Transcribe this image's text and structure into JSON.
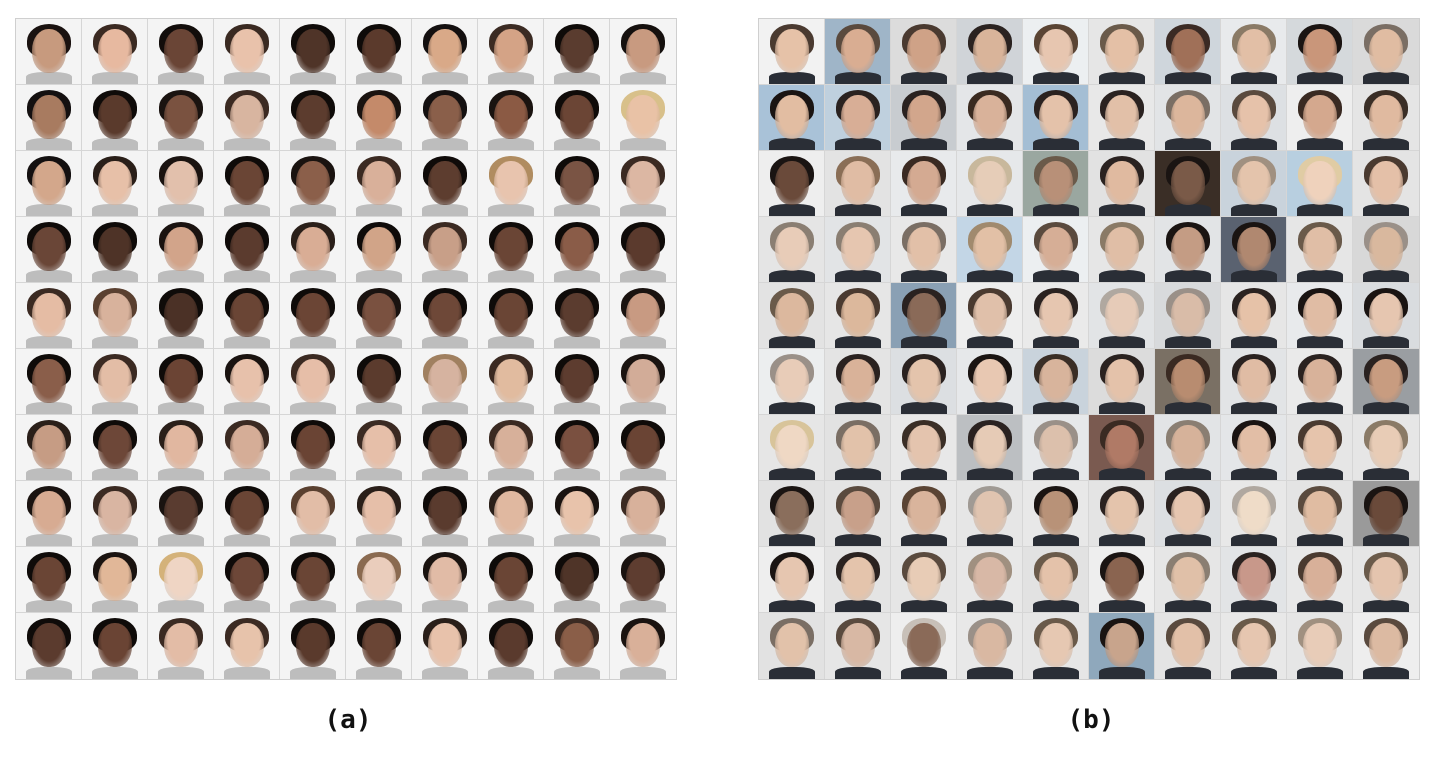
{
  "panels": [
    {
      "label": "(a)",
      "rows": 10,
      "cols": 10,
      "background": "#f4f4f4",
      "clothing": "#bdbdbd",
      "skin": [
        "#c79a7e",
        "#e7b9a0",
        "#6a4536",
        "#e9c2ab",
        "#4f3428",
        "#5b3a2c",
        "#d9a988",
        "#d4a386",
        "#5a3c2f",
        "#c89a80",
        "#a87b60",
        "#5a3a2c",
        "#7a5240",
        "#d8b5a0",
        "#5c3c2e",
        "#c48a6a",
        "#8a5f4a",
        "#8b5a44",
        "#6b4535",
        "#e9c2a6",
        "#d3a78b",
        "#e7c0a8",
        "#e2c0ac",
        "#6a4535",
        "#8b5f4a",
        "#d9b09a",
        "#5d3d2f",
        "#e8c4ae",
        "#7a5444",
        "#dcb7a3",
        "#6a4637",
        "#4e3327",
        "#d2a48a",
        "#5b3b2e",
        "#d9ad95",
        "#d1a488",
        "#c89f88",
        "#6a4535",
        "#8a5c48",
        "#5b3a2d",
        "#e5bca4",
        "#d8b29c",
        "#4b3126",
        "#6a4535",
        "#6b4535",
        "#7a5140",
        "#6e4838",
        "#6a4535",
        "#5b3c2f",
        "#c89a82",
        "#8a5e4a",
        "#e3bda6",
        "#6b4434",
        "#e7c1ab",
        "#e6bea8",
        "#5b3b2d",
        "#d6b3a0",
        "#e1bb9f",
        "#5d3c2f",
        "#d2ac98",
        "#c69c84",
        "#6d4738",
        "#e1b7a0",
        "#d5ad97",
        "#6a4434",
        "#e6bfa9",
        "#6a4535",
        "#d7b09a",
        "#7a5040",
        "#6a4434",
        "#d7ab92",
        "#d9b5a2",
        "#5a3c30",
        "#6a4535",
        "#e2bda7",
        "#e6bfa9",
        "#5a3b2e",
        "#e0b8a0",
        "#e8c3ab",
        "#d8b19b",
        "#6a4535",
        "#e1b798",
        "#efd5c4",
        "#6d4738",
        "#6a4535",
        "#eacdbc",
        "#e1bba6",
        "#6a4535",
        "#4f3428",
        "#5e3d30",
        "#5b3b2e",
        "#6a4434",
        "#e3bca6",
        "#e7c3ab",
        "#5a3a2c",
        "#6a4535",
        "#e8c2ab",
        "#5a3a2d",
        "#8a5e48",
        "#d9b099"
      ],
      "hair": [
        "#1a1210",
        "#3b2a22",
        "#120d0b",
        "#3a2a22",
        "#0f0b09",
        "#0f0b09",
        "#141010",
        "#3b2b23",
        "#0f0b09",
        "#15100e",
        "#141010",
        "#0f0b09",
        "#1a1310",
        "#3b2a22",
        "#0f0b09",
        "#1a1310",
        "#141010",
        "#1a1310",
        "#0f0b09",
        "#d8c08a",
        "#141010",
        "#2a1f19",
        "#1a1310",
        "#0f0b09",
        "#1a1310",
        "#3b2a22",
        "#0f0b09",
        "#b08c60",
        "#0f0b09",
        "#3b2a22",
        "#0f0b09",
        "#0f0b09",
        "#1a1310",
        "#0f0b09",
        "#2a1f19",
        "#0f0b09",
        "#3b2a22",
        "#0f0b09",
        "#0f0b09",
        "#0f0b09",
        "#3b2a22",
        "#5a4030",
        "#0f0b09",
        "#0f0b09",
        "#0f0b09",
        "#1a1310",
        "#0f0b09",
        "#0f0b09",
        "#0f0b09",
        "#1a1310",
        "#0f0b09",
        "#3b2a22",
        "#0f0b09",
        "#1a1310",
        "#3b2a22",
        "#0f0b09",
        "#a08060",
        "#3b2a22",
        "#0f0b09",
        "#1a1310",
        "#2a1f19",
        "#0f0b09",
        "#2a1f19",
        "#3b2a22",
        "#0f0b09",
        "#3b2a22",
        "#0f0b09",
        "#3b2a22",
        "#0f0b09",
        "#0f0b09",
        "#1a1310",
        "#3b2a22",
        "#1a1310",
        "#0f0b09",
        "#5a4030",
        "#2a1f19",
        "#0f0b09",
        "#2a1f19",
        "#1a1310",
        "#3b2a22",
        "#0f0b09",
        "#1a1310",
        "#d4b27a",
        "#0f0b09",
        "#0f0b09",
        "#8a6a50",
        "#1a1310",
        "#0f0b09",
        "#0f0b09",
        "#1a1310",
        "#0f0b09",
        "#0f0b09",
        "#3b2a22",
        "#3b2a22",
        "#0f0b09",
        "#0f0b09",
        "#2a1f19",
        "#0f0b09",
        "#3b2a22",
        "#1a1310"
      ]
    },
    {
      "label": "(b)",
      "rows": 10,
      "cols": 10,
      "background": "#e9eef2",
      "clothing": "#2a2e36",
      "bg_tints": [
        "#f2f2f2",
        "#9fb5c8",
        "#dcdcdc",
        "#d0d4d8",
        "#eceff1",
        "#e6e6e6",
        "#cfd6dc",
        "#e8eaec",
        "#d5d9dc",
        "#dadada",
        "#a9c2d8",
        "#bfd0de",
        "#c8ccd0",
        "#e4e6e8",
        "#a4bed4",
        "#e8e8e8",
        "#e2e4e6",
        "#dde0e3",
        "#eeeeee",
        "#e5e5e5",
        "#eeeeee",
        "#e3e3e3",
        "#e8eaec",
        "#e6e8ea",
        "#9aa7a0",
        "#e2e2e2",
        "#3a2e26",
        "#c9d3dc",
        "#b8cfe0",
        "#e4e4e4",
        "#e5e5e5",
        "#e2e4e6",
        "#e8e8e8",
        "#c3d6e6",
        "#eceff1",
        "#e6e6e6",
        "#e2e4e6",
        "#5a6270",
        "#e6e6e6",
        "#d8d8d8",
        "#e3e3e3",
        "#e6e6e6",
        "#8aa0b4",
        "#eeeeee",
        "#eaeaea",
        "#e2e4e6",
        "#d8dadc",
        "#e6e6e6",
        "#e8eaec",
        "#d9dcdf",
        "#eceeef",
        "#e4e4e4",
        "#dcdfe2",
        "#e6e8ea",
        "#c9d3dc",
        "#dcdcdc",
        "#7a7064",
        "#e2e4e6",
        "#eaeaea",
        "#9a9ea2",
        "#e6e6e6",
        "#e2e2e2",
        "#e8e8e8",
        "#bcbfc2",
        "#e6e8ea",
        "#7a5a50",
        "#e2e4e6",
        "#e4e6e8",
        "#e6e6e6",
        "#e6e6e6",
        "#e2e2e2",
        "#e4e4e4",
        "#e8e8e8",
        "#e6e6e6",
        "#e8e8e8",
        "#e4e4e4",
        "#dcdfe2",
        "#e8e8e8",
        "#e4e4e4",
        "#9a9a9a",
        "#eeeeee",
        "#e4e4e4",
        "#e6e6e6",
        "#e8e8e8",
        "#e2e2e2",
        "#eeeeee",
        "#e6e6e6",
        "#e2e4e6",
        "#e8e8e8",
        "#e6e6e6",
        "#e2e2e2",
        "#e6e6e6",
        "#eeeeee",
        "#e8e8e8",
        "#e6e6e6",
        "#8fa8bc",
        "#e4e4e4",
        "#e8e8e8",
        "#e6e6e6",
        "#eeeeee"
      ],
      "skin": [
        "#e6c2a8",
        "#d9ad92",
        "#cfa287",
        "#d9b49a",
        "#e7c6b0",
        "#e4c0a6",
        "#a07058",
        "#e2bfa6",
        "#c9967a",
        "#e0bca2",
        "#e2bda2",
        "#d8ae96",
        "#d2a68c",
        "#d9b29a",
        "#e4c2aa",
        "#e2c0a8",
        "#dcb69c",
        "#e6c2aa",
        "#d4a88e",
        "#e0baa0",
        "#6a4a3a",
        "#e0bca4",
        "#d4aa92",
        "#e6cdb8",
        "#b89078",
        "#e0baa0",
        "#7a5a48",
        "#e4c4ac",
        "#efd2bc",
        "#e4c0a8",
        "#e8ccb8",
        "#e6c6b0",
        "#e2c0a8",
        "#e2c0a6",
        "#d6ae96",
        "#e0bea6",
        "#c49c84",
        "#b08870",
        "#e0bea6",
        "#d9b89e",
        "#dcb89e",
        "#dcb89c",
        "#8a6a58",
        "#e0c0aa",
        "#e6c6b0",
        "#e6cbb8",
        "#d9bca8",
        "#e6c2a8",
        "#e0bca4",
        "#e6c6b0",
        "#e8ccb8",
        "#d9b299",
        "#e4c4ac",
        "#e8c8b2",
        "#d8b49c",
        "#e4c2aa",
        "#b88c70",
        "#e0bca4",
        "#d8b29a",
        "#c89c80",
        "#efd8c4",
        "#e2c2aa",
        "#e4c4ae",
        "#e6cbb6",
        "#dcc0ac",
        "#b07a66",
        "#d6b29a",
        "#e2bea6",
        "#e6c4ac",
        "#e8ccb6",
        "#8a6e5c",
        "#c8a08a",
        "#d9b49c",
        "#e0c4b0",
        "#b89278",
        "#e4c4ac",
        "#e6c6b0",
        "#efdcc8",
        "#e0bca2",
        "#6a4a3a",
        "#e6c6b0",
        "#e4c4ac",
        "#e8ccb6",
        "#d8b8a6",
        "#e4c2aa",
        "#8a6450",
        "#e0c0a8",
        "#c8988a",
        "#d8b099",
        "#e4c4ae",
        "#e2c2aa",
        "#d8b8a4",
        "#8a6a58",
        "#d9b8a2",
        "#e6c8b2",
        "#c8a48c",
        "#e2c0a8",
        "#e6c6b0",
        "#e8ccb8",
        "#dcbaa2"
      ],
      "hair": [
        "#4a3a30",
        "#5a4a3e",
        "#4a3a30",
        "#2a2220",
        "#5a4434",
        "#6a5a4a",
        "#3a2a24",
        "#8a7a66",
        "#1a1412",
        "#7a6e64",
        "#1a1412",
        "#2a2220",
        "#2a2220",
        "#3a2a20",
        "#2a2220",
        "#2a2220",
        "#7a6e64",
        "#5a4a3e",
        "#3a2a22",
        "#3a2e26",
        "#1a1412",
        "#8a6e56",
        "#3a2a22",
        "#c8b89c",
        "#6a5a4a",
        "#2a2220",
        "#1a1412",
        "#a09080",
        "#e0cca4",
        "#4a3a30",
        "#8a7e72",
        "#8a7e72",
        "#7a6e64",
        "#a08a6e",
        "#5a4a3e",
        "#8a7a66",
        "#1a1412",
        "#1a1412",
        "#6a5a4a",
        "#9a9088",
        "#6a5a4a",
        "#4a3a30",
        "#2a2220",
        "#4a3a30",
        "#2a2220",
        "#b0a8a0",
        "#9a9088",
        "#2a2220",
        "#1a1412",
        "#1a1412",
        "#9a9088",
        "#2a2220",
        "#2a2220",
        "#1a1412",
        "#3a2e26",
        "#2a2220",
        "#3a2a22",
        "#2a2220",
        "#2a2220",
        "#2a2220",
        "#d8c49a",
        "#7a6e64",
        "#3a2e26",
        "#2a2220",
        "#9a9088",
        "#3a2a22",
        "#8a7e72",
        "#1a1412",
        "#4a3a30",
        "#8a7a66",
        "#1a1412",
        "#5a4a3e",
        "#5a4434",
        "#a09a94",
        "#1a1412",
        "#2a2220",
        "#2a2220",
        "#b0a8a0",
        "#5a4a3e",
        "#1a1412",
        "#1a1412",
        "#2a2220",
        "#5a4a3e",
        "#a09080",
        "#6a5a4a",
        "#1a1412",
        "#8a7e72",
        "#2a2220",
        "#4a3a30",
        "#6a5a4a",
        "#7a6e64",
        "#5a4a3e",
        "#c8c0b8",
        "#9a9088",
        "#6a5a4a",
        "#1a1412",
        "#5a4a3e",
        "#6a5a4a",
        "#a09080",
        "#5a4a3e"
      ]
    }
  ]
}
